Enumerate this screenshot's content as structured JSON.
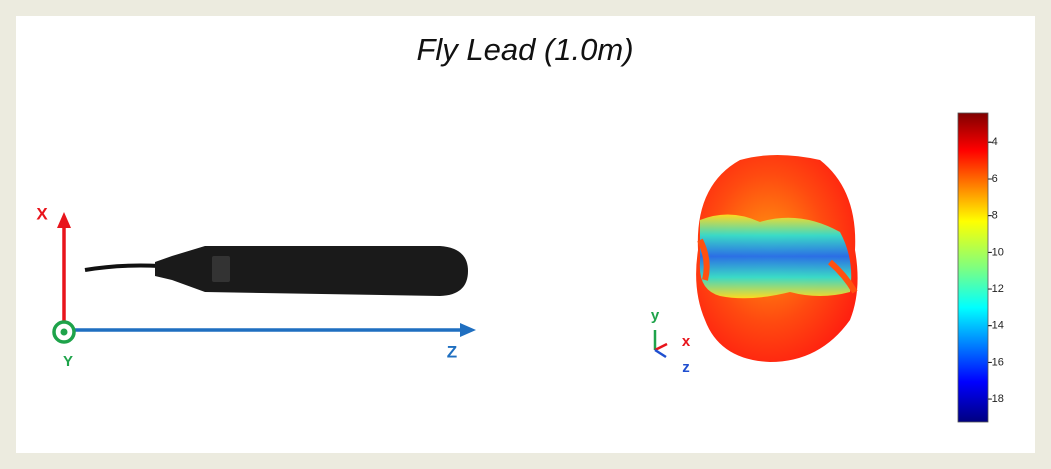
{
  "title": "Fly Lead (1.0m)",
  "device_axes": {
    "x_label": "X",
    "z_label": "Z",
    "y_label": "Y"
  },
  "pattern_axes": {
    "y_label": "y",
    "x_label": "x",
    "z_label": "z"
  },
  "colorbar": {
    "lim": [
      -19.25,
      -2.4
    ],
    "ticks": [
      -4,
      -6,
      -8,
      -10,
      -12,
      -14,
      -16,
      -18
    ]
  }
}
